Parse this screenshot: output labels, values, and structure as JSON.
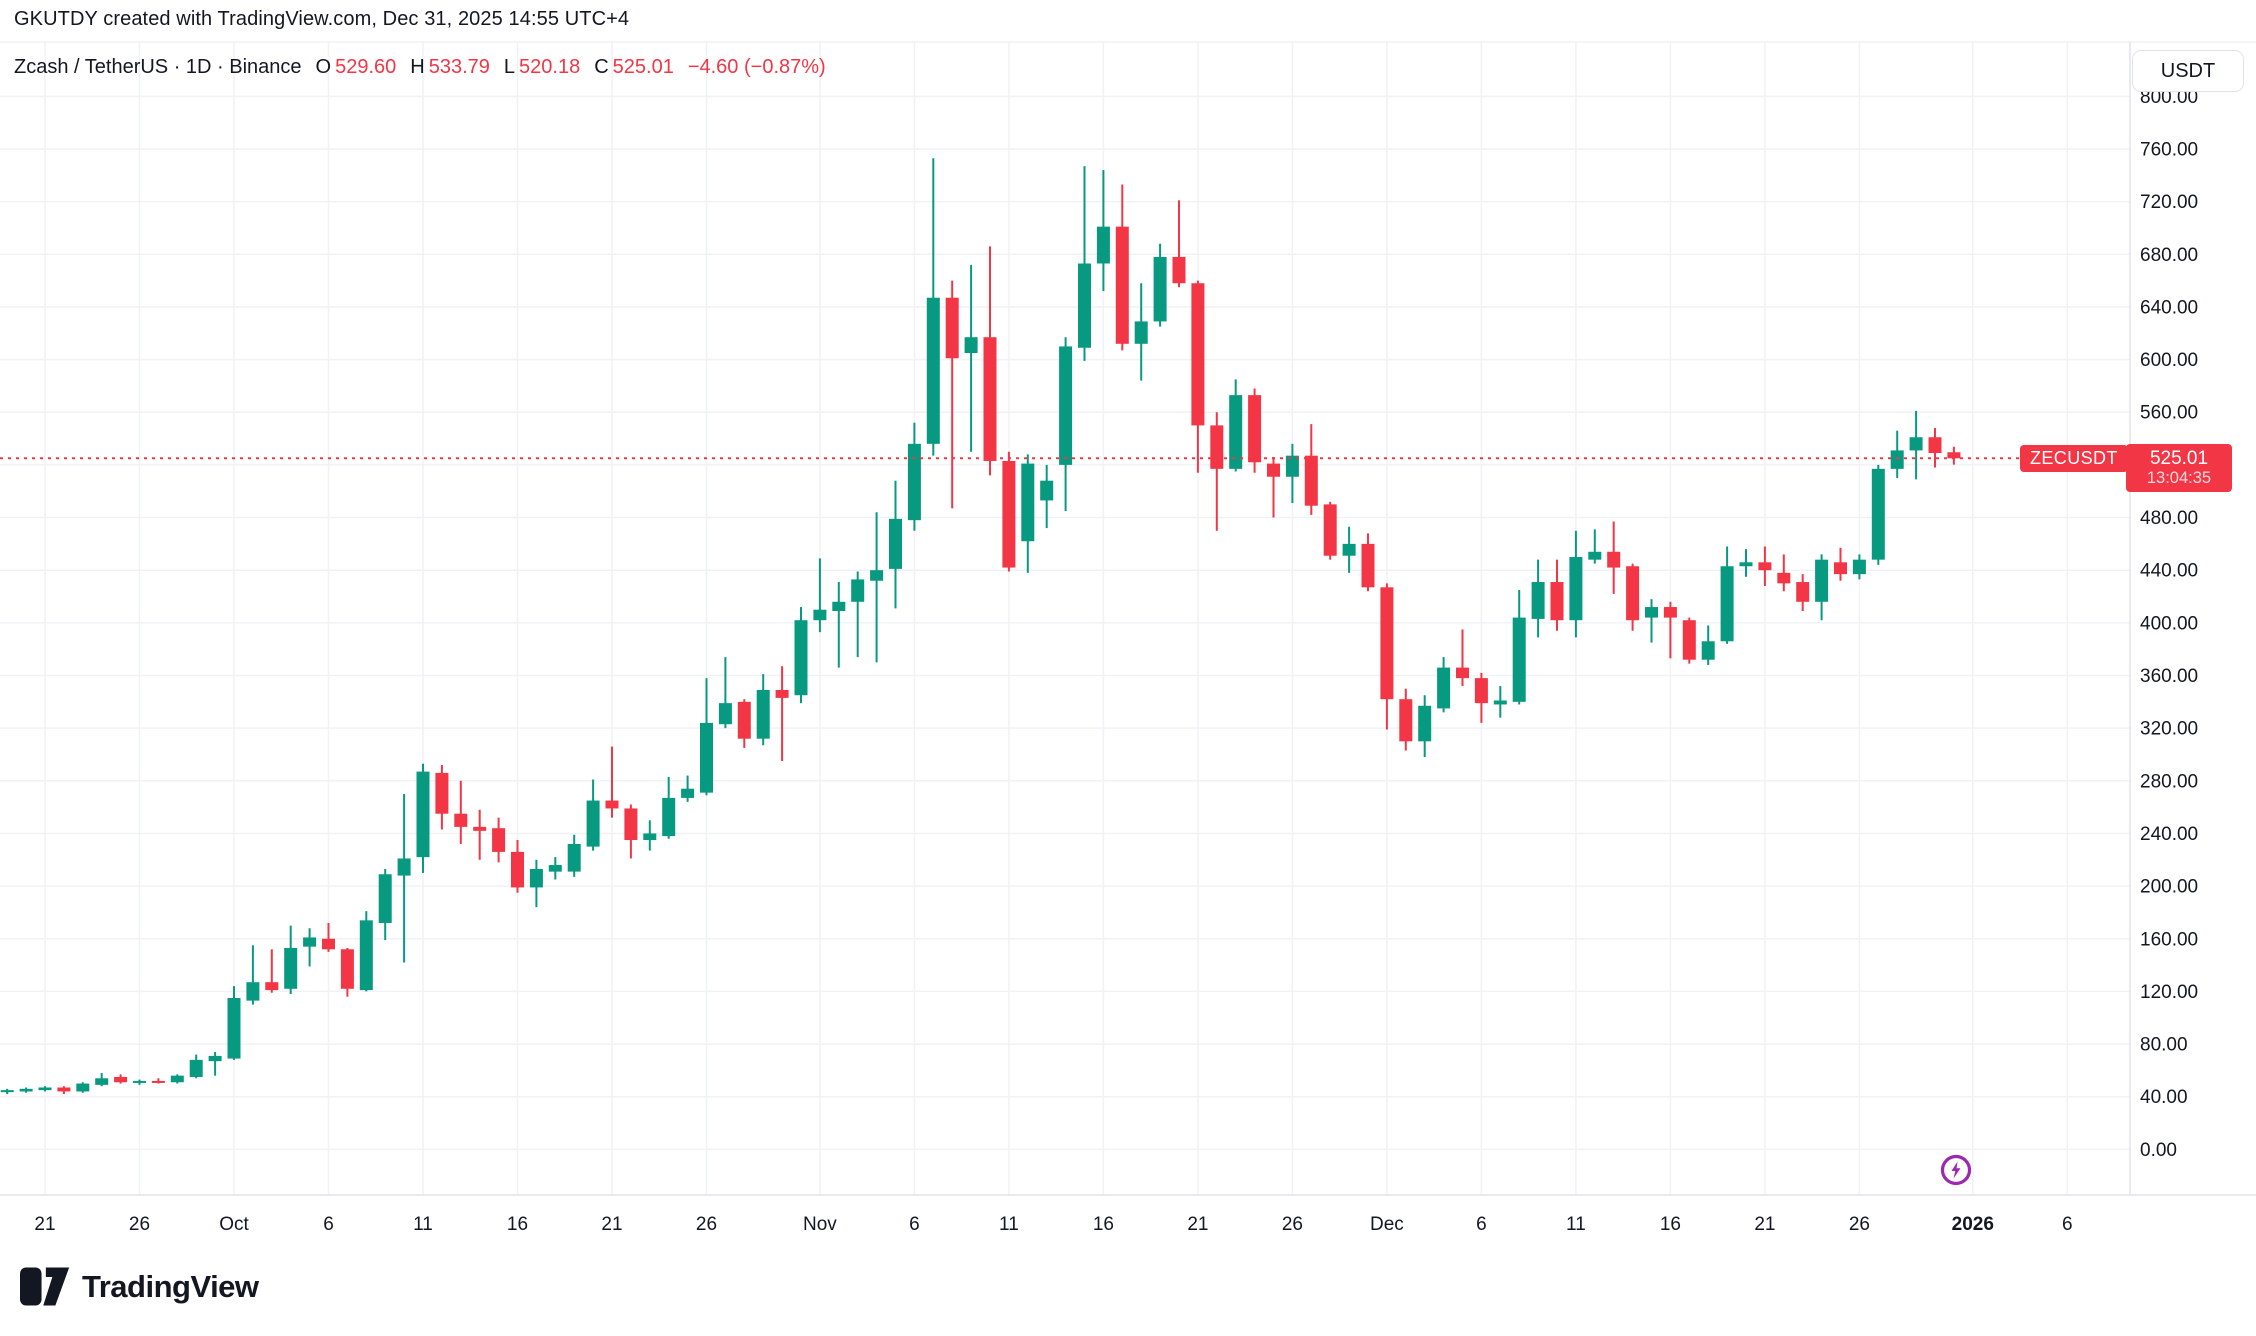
{
  "header": {
    "title": "GKUTDY created with TradingView.com, Dec 31, 2025 14:55 UTC+4"
  },
  "legend": {
    "symbol_line": "Zcash / TetherUS · 1D · Binance",
    "ohlc": [
      {
        "k": "O",
        "v": "529.60"
      },
      {
        "k": "H",
        "v": "533.79"
      },
      {
        "k": "L",
        "v": "520.18"
      },
      {
        "k": "C",
        "v": "525.01"
      }
    ],
    "change": "−4.60 (−0.87%)"
  },
  "currency_button": {
    "label": "USDT"
  },
  "price_line_badge": {
    "symbol": "ZECUSDT",
    "price": "525.01",
    "countdown": "13:04:35"
  },
  "watermark": {
    "brand": "TradingView"
  },
  "colors": {
    "up": "#089981",
    "down": "#f23645",
    "text": "#131722",
    "grid": "#f0f2f6",
    "axis_border": "#e0e3eb",
    "purple": "#9c27b0"
  },
  "price_axis": {
    "labels": [
      "800.00",
      "760.00",
      "720.00",
      "680.00",
      "640.00",
      "600.00",
      "560.00",
      "480.00",
      "440.00",
      "400.00",
      "360.00",
      "320.00",
      "280.00",
      "240.00",
      "200.00",
      "160.00",
      "120.00",
      "80.00",
      "40.00",
      "0.00"
    ]
  },
  "time_axis": {
    "ticks": [
      {
        "label": "21",
        "day": 2
      },
      {
        "label": "26",
        "day": 7
      },
      {
        "label": "Oct",
        "day": 12
      },
      {
        "label": "6",
        "day": 17
      },
      {
        "label": "11",
        "day": 22
      },
      {
        "label": "16",
        "day": 27
      },
      {
        "label": "21",
        "day": 32
      },
      {
        "label": "26",
        "day": 37
      },
      {
        "label": "Nov",
        "day": 43
      },
      {
        "label": "6",
        "day": 48
      },
      {
        "label": "11",
        "day": 53
      },
      {
        "label": "16",
        "day": 58
      },
      {
        "label": "21",
        "day": 63
      },
      {
        "label": "26",
        "day": 68
      },
      {
        "label": "Dec",
        "day": 73
      },
      {
        "label": "6",
        "day": 78
      },
      {
        "label": "11",
        "day": 83
      },
      {
        "label": "16",
        "day": 88
      },
      {
        "label": "21",
        "day": 93
      },
      {
        "label": "26",
        "day": 98
      },
      {
        "label": "2026",
        "day": 104,
        "bold": true
      },
      {
        "label": "6",
        "day": 109
      }
    ]
  },
  "chart_data": {
    "type": "candlestick",
    "title": "Zcash / TetherUS",
    "symbol": "ZECUSDT",
    "exchange": "Binance",
    "interval": "1D",
    "quote_currency": "USDT",
    "legend_ohlc": {
      "open": 529.6,
      "high": 533.79,
      "low": 520.18,
      "close": 525.01,
      "change": -4.6,
      "change_pct": -0.87
    },
    "last_price": 525.01,
    "countdown": "13:04:35",
    "y_axis": {
      "min": 0,
      "max": 800,
      "tick_step": 40,
      "grid": true
    },
    "x_axis": {
      "start": "Sep 19 2025",
      "end": "Jan 6 2026 (empty margin)",
      "grid": true
    },
    "candles": [
      [
        "Sep 19",
        44,
        46,
        42,
        45
      ],
      [
        "Sep 20",
        44,
        47,
        43,
        46
      ],
      [
        "Sep 21",
        45,
        48,
        44,
        47
      ],
      [
        "Sep 22",
        47,
        48,
        42,
        44
      ],
      [
        "Sep 23",
        44,
        51,
        43,
        50
      ],
      [
        "Sep 24",
        49,
        58,
        48,
        54
      ],
      [
        "Sep 25",
        55,
        57,
        50,
        51
      ],
      [
        "Sep 26",
        51,
        53,
        49,
        52
      ],
      [
        "Sep 27",
        52,
        54,
        50,
        51
      ],
      [
        "Sep 28",
        51,
        57,
        50,
        56
      ],
      [
        "Sep 29",
        55,
        72,
        54,
        68
      ],
      [
        "Sep 30",
        67,
        74,
        56,
        71
      ],
      [
        "Oct 1",
        69,
        124,
        68,
        115
      ],
      [
        "Oct 2",
        113,
        155,
        110,
        127
      ],
      [
        "Oct 3",
        127,
        152,
        119,
        121
      ],
      [
        "Oct 4",
        122,
        170,
        118,
        153
      ],
      [
        "Oct 5",
        154,
        168,
        139,
        161
      ],
      [
        "Oct 6",
        160,
        172,
        150,
        152
      ],
      [
        "Oct 7",
        152,
        153,
        116,
        122
      ],
      [
        "Oct 8",
        121,
        181,
        120,
        174
      ],
      [
        "Oct 9",
        172,
        213,
        159,
        209
      ],
      [
        "Oct 10",
        208,
        270,
        142,
        221
      ],
      [
        "Oct 11",
        222,
        293,
        210,
        287
      ],
      [
        "Oct 12",
        286,
        292,
        243,
        255
      ],
      [
        "Oct 13",
        255,
        280,
        232,
        245
      ],
      [
        "Oct 14",
        245,
        258,
        220,
        242
      ],
      [
        "Oct 15",
        244,
        252,
        218,
        226
      ],
      [
        "Oct 16",
        226,
        235,
        195,
        199
      ],
      [
        "Oct 17",
        199,
        220,
        184,
        213
      ],
      [
        "Oct 18",
        211,
        222,
        205,
        216
      ],
      [
        "Oct 19",
        211,
        239,
        207,
        232
      ],
      [
        "Oct 20",
        230,
        281,
        227,
        265
      ],
      [
        "Oct 21",
        265,
        306,
        252,
        259
      ],
      [
        "Oct 22",
        259,
        262,
        221,
        235
      ],
      [
        "Oct 23",
        235,
        250,
        227,
        240
      ],
      [
        "Oct 24",
        238,
        283,
        236,
        267
      ],
      [
        "Oct 25",
        267,
        284,
        264,
        274
      ],
      [
        "Oct 26",
        271,
        358,
        269,
        324
      ],
      [
        "Oct 27",
        323,
        374,
        320,
        339
      ],
      [
        "Oct 28",
        340,
        342,
        305,
        312
      ],
      [
        "Oct 29",
        312,
        361,
        307,
        349
      ],
      [
        "Oct 30",
        349,
        367,
        295,
        343
      ],
      [
        "Oct 31",
        345,
        412,
        339,
        402
      ],
      [
        "Nov 1",
        402,
        449,
        393,
        410
      ],
      [
        "Nov 2",
        409,
        431,
        366,
        416
      ],
      [
        "Nov 3",
        416,
        439,
        374,
        433
      ],
      [
        "Nov 4",
        432,
        484,
        370,
        440
      ],
      [
        "Nov 5",
        441,
        508,
        411,
        479
      ],
      [
        "Nov 6",
        478,
        552,
        470,
        536
      ],
      [
        "Nov 7",
        536,
        753,
        527,
        647
      ],
      [
        "Nov 8",
        647,
        660,
        487,
        601
      ],
      [
        "Nov 9",
        605,
        672,
        530,
        617
      ],
      [
        "Nov 10",
        617,
        686,
        512,
        523
      ],
      [
        "Nov 11",
        523,
        530,
        439,
        442
      ],
      [
        "Nov 12",
        462,
        528,
        438,
        521
      ],
      [
        "Nov 13",
        493,
        520,
        472,
        508
      ],
      [
        "Nov 14",
        520,
        617,
        485,
        610
      ],
      [
        "Nov 15",
        609,
        747,
        599,
        673
      ],
      [
        "Nov 16",
        673,
        744,
        652,
        701
      ],
      [
        "Nov 17",
        701,
        733,
        607,
        612
      ],
      [
        "Nov 18",
        612,
        658,
        584,
        629
      ],
      [
        "Nov 19",
        629,
        688,
        625,
        678
      ],
      [
        "Nov 20",
        678,
        721,
        655,
        658
      ],
      [
        "Nov 21",
        658,
        660,
        514,
        550
      ],
      [
        "Nov 22",
        550,
        560,
        470,
        517
      ],
      [
        "Nov 23",
        517,
        585,
        515,
        573
      ],
      [
        "Nov 24",
        573,
        578,
        514,
        522
      ],
      [
        "Nov 25",
        521,
        526,
        480,
        511
      ],
      [
        "Nov 26",
        511,
        536,
        491,
        527
      ],
      [
        "Nov 27",
        527,
        551,
        482,
        489
      ],
      [
        "Nov 28",
        490,
        492,
        448,
        451
      ],
      [
        "Nov 29",
        451,
        473,
        438,
        460
      ],
      [
        "Nov 30",
        460,
        468,
        424,
        427
      ],
      [
        "Dec 1",
        427,
        430,
        319,
        342
      ],
      [
        "Dec 2",
        342,
        350,
        303,
        310
      ],
      [
        "Dec 3",
        310,
        345,
        298,
        337
      ],
      [
        "Dec 4",
        335,
        374,
        332,
        366
      ],
      [
        "Dec 5",
        366,
        395,
        352,
        358
      ],
      [
        "Dec 6",
        358,
        362,
        324,
        339
      ],
      [
        "Dec 7",
        338,
        352,
        328,
        341
      ],
      [
        "Dec 8",
        340,
        425,
        338,
        404
      ],
      [
        "Dec 9",
        403,
        448,
        389,
        431
      ],
      [
        "Dec 10",
        431,
        448,
        394,
        402
      ],
      [
        "Dec 11",
        402,
        470,
        389,
        450
      ],
      [
        "Dec 12",
        448,
        471,
        445,
        454
      ],
      [
        "Dec 13",
        454,
        477,
        422,
        442
      ],
      [
        "Dec 14",
        443,
        445,
        394,
        402
      ],
      [
        "Dec 15",
        404,
        418,
        385,
        412
      ],
      [
        "Dec 16",
        412,
        416,
        373,
        404
      ],
      [
        "Dec 17",
        402,
        404,
        369,
        372
      ],
      [
        "Dec 18",
        372,
        398,
        368,
        386
      ],
      [
        "Dec 19",
        386,
        458,
        384,
        443
      ],
      [
        "Dec 20",
        443,
        456,
        435,
        446
      ],
      [
        "Dec 21",
        446,
        458,
        428,
        440
      ],
      [
        "Dec 22",
        438,
        452,
        424,
        430
      ],
      [
        "Dec 23",
        431,
        437,
        409,
        416
      ],
      [
        "Dec 24",
        416,
        452,
        402,
        448
      ],
      [
        "Dec 25",
        446,
        457,
        432,
        437
      ],
      [
        "Dec 26",
        437,
        452,
        433,
        448
      ],
      [
        "Dec 27",
        448,
        520,
        444,
        517
      ],
      [
        "Dec 28",
        517,
        546,
        510,
        531
      ],
      [
        "Dec 29",
        531,
        561,
        509,
        541
      ],
      [
        "Dec 30",
        541,
        548,
        518,
        529
      ],
      [
        "Dec 31",
        529.6,
        533.79,
        520.18,
        525.01
      ]
    ]
  }
}
